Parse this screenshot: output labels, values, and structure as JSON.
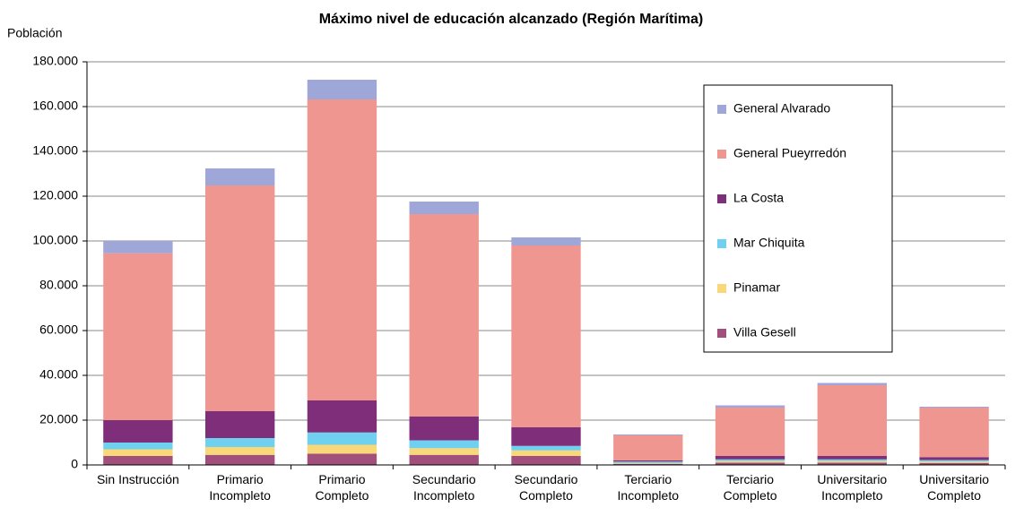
{
  "chart_data": {
    "type": "stacked_bar",
    "title": "Máximo nivel de educación alcanzado (Región Marítima)",
    "y_label": "Población",
    "categories": [
      "Sin Instrucción",
      "Primario Incompleto",
      "Primario Completo",
      "Secundario Incompleto",
      "Secundario Completo",
      "Terciario Incompleto",
      "Terciario Completo",
      "Universitario Incompleto",
      "Universitario Completo"
    ],
    "series": [
      {
        "name": "Villa Gesell",
        "color": "#a0507a",
        "values": [
          4000,
          4500,
          5000,
          4500,
          4000,
          500,
          1000,
          1000,
          900
        ]
      },
      {
        "name": "Pinamar",
        "color": "#f8d878",
        "values": [
          3000,
          3500,
          4000,
          3000,
          2500,
          300,
          700,
          700,
          600
        ]
      },
      {
        "name": "Mar Chiquita",
        "color": "#70d0f0",
        "values": [
          3000,
          4000,
          5500,
          3500,
          2000,
          700,
          800,
          800,
          700
        ]
      },
      {
        "name": "La Costa",
        "color": "#7f2f7a",
        "values": [
          10000,
          12000,
          14300,
          10600,
          8300,
          500,
          1500,
          1500,
          1300
        ]
      },
      {
        "name": "General Pueyrredón",
        "color": "#f09690",
        "values": [
          74500,
          100800,
          134400,
          90400,
          81200,
          11200,
          21600,
          31600,
          22100
        ]
      },
      {
        "name": "General Alvarado",
        "color": "#9fa6d8",
        "values": [
          5500,
          7600,
          8800,
          5600,
          3600,
          400,
          1000,
          1000,
          400
        ]
      }
    ],
    "ylim": [
      0,
      180000
    ],
    "yticks": [
      0,
      {
        "value": 20000,
        "label": "20.000"
      },
      {
        "value": 40000,
        "label": "40.000"
      },
      {
        "value": 60000,
        "label": "60.000"
      },
      {
        "value": 80000,
        "label": "80.000"
      },
      {
        "value": 100000,
        "label": "100.000"
      },
      {
        "value": 120000,
        "label": "120.000"
      },
      {
        "value": 140000,
        "label": "140.000"
      },
      {
        "value": 160000,
        "label": "160.000"
      },
      {
        "value": 180000,
        "label": "180.000"
      }
    ],
    "grid": true,
    "legend": "right"
  }
}
